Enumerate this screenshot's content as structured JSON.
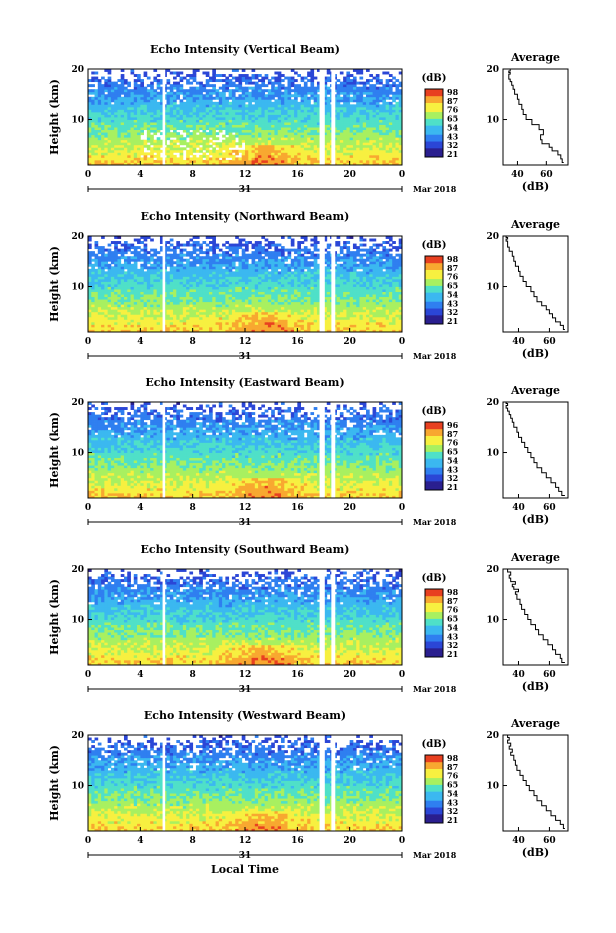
{
  "chart_data": [
    {
      "type": "heatmap",
      "title": "Echo Intensity (Vertical Beam)",
      "ylabel": "Height (km)",
      "x_ticks": [
        "0",
        "4",
        "8",
        "12",
        "16",
        "20",
        "0"
      ],
      "y_ticks": [
        "20",
        "10"
      ],
      "day_label": "31",
      "date_label": "Mar 2018",
      "xlim": [
        0,
        24
      ],
      "ylim": [
        1,
        20
      ],
      "data_gaps_hours": [
        [
          5.7,
          5.9
        ],
        [
          17.7,
          18.1
        ],
        [
          18.6,
          18.9
        ]
      ],
      "colorbar": {
        "unit": "(dB)",
        "ticks": [
          "98",
          "87",
          "76",
          "65",
          "54",
          "43",
          "32",
          "21"
        ]
      },
      "average_profile": {
        "title": "Average",
        "xlabel": "(dB)",
        "x_ticks": [
          "40",
          "60"
        ],
        "y_ticks": [
          "20",
          "10"
        ],
        "xlim": [
          30,
          75
        ],
        "ylim": [
          1,
          20
        ],
        "x": [
          72,
          71,
          70,
          68,
          64,
          62,
          57,
          56,
          58,
          55,
          50,
          46,
          44,
          43,
          41,
          40,
          38,
          37,
          36,
          35,
          34,
          34,
          35,
          34,
          35
        ],
        "y": [
          1.5,
          2.2,
          3,
          3.8,
          4.5,
          5.2,
          6,
          7,
          8,
          9,
          10,
          11,
          12,
          13,
          14,
          15,
          16,
          16.8,
          17.5,
          18,
          18.5,
          19,
          19.3,
          19.6,
          19.9
        ]
      }
    },
    {
      "type": "heatmap",
      "title": "Echo Intensity (Northward Beam)",
      "ylabel": "Height (km)",
      "x_ticks": [
        "0",
        "4",
        "8",
        "12",
        "16",
        "20",
        "0"
      ],
      "y_ticks": [
        "20",
        "10"
      ],
      "day_label": "31",
      "date_label": "Mar 2018",
      "xlim": [
        0,
        24
      ],
      "ylim": [
        1,
        20
      ],
      "data_gaps_hours": [
        [
          5.7,
          5.9
        ],
        [
          17.7,
          18.1
        ],
        [
          18.6,
          18.9
        ]
      ],
      "colorbar": {
        "unit": "(dB)",
        "ticks": [
          "98",
          "87",
          "76",
          "65",
          "54",
          "43",
          "32",
          "21"
        ]
      },
      "average_profile": {
        "title": "Average",
        "xlabel": "(dB)",
        "x_ticks": [
          "40",
          "60"
        ],
        "y_ticks": [
          "20",
          "10"
        ],
        "xlim": [
          30,
          72
        ],
        "ylim": [
          1,
          20
        ],
        "x": [
          70,
          69,
          67,
          64,
          62,
          60,
          58,
          55,
          52,
          50,
          48,
          45,
          43,
          41,
          40,
          38,
          37,
          36,
          34,
          33,
          33,
          32,
          33,
          32
        ],
        "y": [
          1.5,
          2.3,
          3,
          3.8,
          4.6,
          5.4,
          6.2,
          7,
          8,
          9,
          10,
          11,
          12,
          13,
          14,
          15,
          16,
          17,
          17.8,
          18.4,
          19,
          19.4,
          19.7,
          20
        ]
      }
    },
    {
      "type": "heatmap",
      "title": "Echo Intensity (Eastward Beam)",
      "ylabel": "Height (km)",
      "x_ticks": [
        "0",
        "4",
        "8",
        "12",
        "16",
        "20",
        "0"
      ],
      "y_ticks": [
        "20",
        "10"
      ],
      "day_label": "31",
      "date_label": "Mar 2018",
      "xlim": [
        0,
        24
      ],
      "ylim": [
        1,
        20
      ],
      "data_gaps_hours": [
        [
          5.7,
          5.9
        ],
        [
          17.7,
          18.1
        ],
        [
          18.6,
          18.9
        ]
      ],
      "colorbar": {
        "unit": "(dB)",
        "ticks": [
          "96",
          "87",
          "76",
          "65",
          "54",
          "43",
          "32",
          "21"
        ]
      },
      "average_profile": {
        "title": "Average",
        "xlabel": "(dB)",
        "x_ticks": [
          "40",
          "60"
        ],
        "y_ticks": [
          "20",
          "10"
        ],
        "xlim": [
          30,
          72
        ],
        "ylim": [
          1,
          20
        ],
        "x": [
          70,
          68,
          66,
          64,
          61,
          58,
          55,
          52,
          50,
          48,
          46,
          44,
          42,
          40,
          39,
          37,
          36,
          35,
          34,
          33,
          32,
          33,
          32
        ],
        "y": [
          1.5,
          2.3,
          3.1,
          4,
          5,
          6,
          7,
          8,
          9,
          10,
          11,
          12,
          13,
          14,
          15,
          16,
          16.8,
          17.5,
          18.2,
          18.8,
          19.3,
          19.7,
          20
        ]
      }
    },
    {
      "type": "heatmap",
      "title": "Echo Intensity (Southward Beam)",
      "ylabel": "Height (km)",
      "x_ticks": [
        "0",
        "4",
        "8",
        "12",
        "16",
        "20",
        "0"
      ],
      "y_ticks": [
        "20",
        "10"
      ],
      "day_label": "31",
      "date_label": "Mar 2018",
      "xlim": [
        0,
        24
      ],
      "ylim": [
        1,
        20
      ],
      "data_gaps_hours": [
        [
          5.7,
          5.9
        ],
        [
          17.7,
          18.1
        ],
        [
          18.6,
          18.9
        ]
      ],
      "colorbar": {
        "unit": "(dB)",
        "ticks": [
          "98",
          "87",
          "76",
          "65",
          "54",
          "43",
          "32",
          "21"
        ]
      },
      "average_profile": {
        "title": "Average",
        "xlabel": "(dB)",
        "x_ticks": [
          "40",
          "60"
        ],
        "y_ticks": [
          "20",
          "10"
        ],
        "xlim": [
          30,
          72
        ],
        "ylim": [
          1,
          20
        ],
        "x": [
          70,
          68,
          67,
          64,
          62,
          59,
          56,
          53,
          51,
          48,
          46,
          44,
          42,
          41,
          39,
          38,
          40,
          37,
          36,
          38,
          35,
          34,
          35,
          33
        ],
        "y": [
          1.5,
          2.3,
          3.1,
          4,
          5,
          6,
          7,
          8,
          9,
          10,
          11,
          12,
          13,
          14,
          15,
          15.5,
          16,
          16.5,
          17,
          17.5,
          18.2,
          18.8,
          19.4,
          20
        ]
      }
    },
    {
      "type": "heatmap",
      "title": "Echo Intensity (Westward Beam)",
      "ylabel": "Height (km)",
      "xlabel": "Local Time",
      "x_ticks": [
        "0",
        "4",
        "8",
        "12",
        "16",
        "20",
        "0"
      ],
      "y_ticks": [
        "20",
        "10"
      ],
      "day_label": "31",
      "date_label": "Mar 2018",
      "xlim": [
        0,
        24
      ],
      "ylim": [
        1,
        20
      ],
      "data_gaps_hours": [
        [
          5.7,
          5.9
        ],
        [
          17.7,
          18.1
        ],
        [
          18.6,
          18.9
        ]
      ],
      "colorbar": {
        "unit": "(dB)",
        "ticks": [
          "98",
          "87",
          "76",
          "65",
          "54",
          "43",
          "32",
          "21"
        ]
      },
      "average_profile": {
        "title": "Average",
        "xlabel": "(dB)",
        "x_ticks": [
          "40",
          "60"
        ],
        "y_ticks": [
          "20",
          "10"
        ],
        "xlim": [
          30,
          72
        ],
        "ylim": [
          1,
          20
        ],
        "x": [
          70,
          69,
          67,
          64,
          61,
          58,
          55,
          52,
          50,
          47,
          45,
          43,
          41,
          39,
          38,
          37,
          35,
          36,
          34,
          35,
          33,
          34,
          33
        ],
        "y": [
          1.5,
          2.3,
          3.1,
          4,
          5,
          6,
          7,
          8,
          9,
          10,
          11,
          12,
          13,
          14,
          15,
          16,
          16.6,
          17.2,
          17.8,
          18.4,
          19,
          19.5,
          20
        ]
      }
    }
  ],
  "colors": {
    "colormap": [
      "#2a1f8f",
      "#2b46d6",
      "#2f7ff0",
      "#3bb8f0",
      "#4fe0c8",
      "#a8f060",
      "#f7f040",
      "#f8a830",
      "#e84020"
    ],
    "profile_line": "#000000",
    "gap": "#ffffff"
  }
}
